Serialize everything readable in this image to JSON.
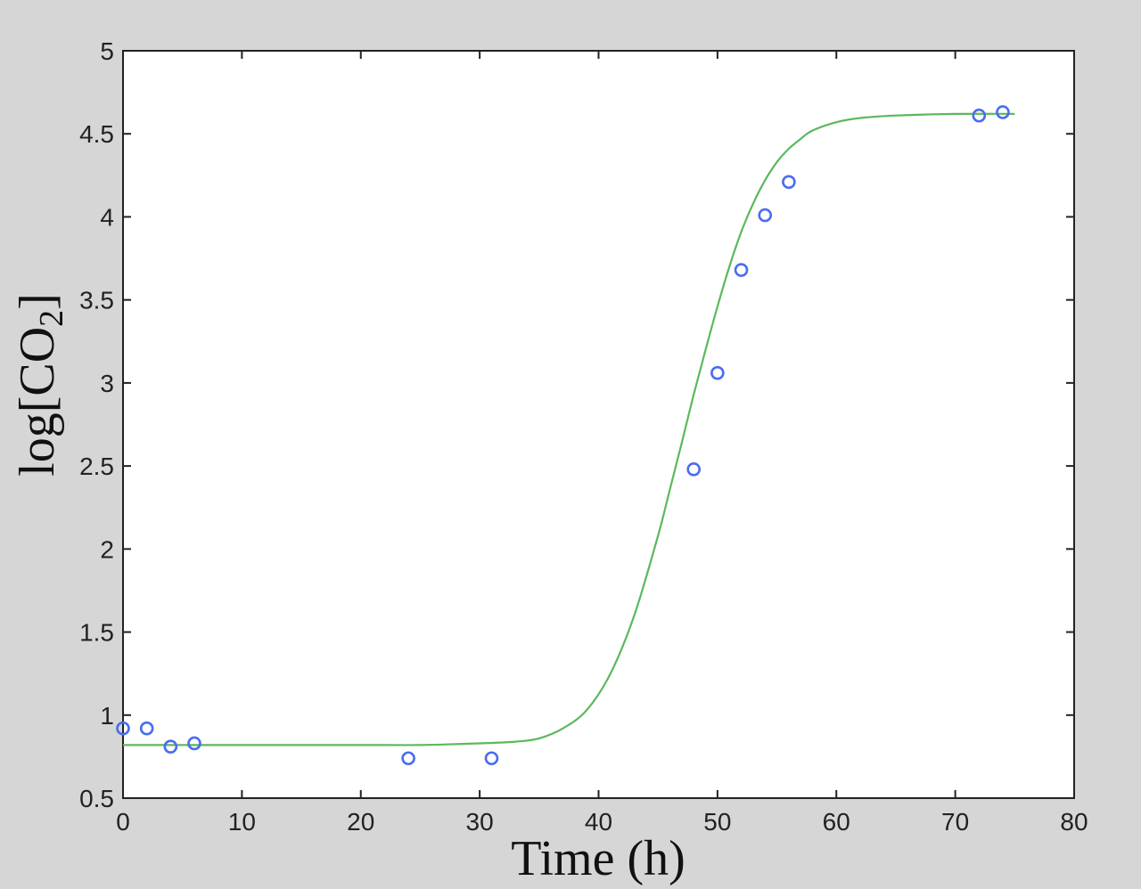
{
  "chart_data": {
    "type": "scatter",
    "xlabel": "Time (h)",
    "ylabel": {
      "main": "log[CO",
      "sub": "2",
      "close": "]"
    },
    "xlim": [
      0,
      80
    ],
    "ylim": [
      0.5,
      5
    ],
    "xticks": [
      0,
      10,
      20,
      30,
      40,
      50,
      60,
      70,
      80
    ],
    "xtick_labels": [
      "0",
      "10",
      "20",
      "30",
      "40",
      "50",
      "60",
      "70",
      "80"
    ],
    "yticks": [
      0.5,
      1,
      1.5,
      2,
      2.5,
      3,
      3.5,
      4,
      4.5,
      5
    ],
    "ytick_labels": [
      "0.5",
      "1",
      "1.5",
      "2",
      "2.5",
      "3",
      "3.5",
      "4",
      "4.5",
      "5"
    ],
    "grid": false,
    "series": [
      {
        "kind": "markers",
        "marker": "circle-open",
        "color": "#4a6cf0",
        "x": [
          0,
          2,
          4,
          6,
          24,
          31,
          48,
          50,
          52,
          54,
          56,
          72,
          74
        ],
        "y": [
          0.92,
          0.92,
          0.81,
          0.83,
          0.74,
          0.74,
          2.48,
          3.06,
          3.68,
          4.01,
          4.21,
          4.61,
          4.63
        ]
      },
      {
        "kind": "line",
        "color": "#5cb85c",
        "x": [
          0,
          5,
          10,
          15,
          20,
          25,
          30,
          33,
          35,
          37,
          39,
          41,
          43,
          45,
          46,
          47,
          48,
          49,
          50,
          51,
          52,
          53,
          54,
          55,
          56,
          57,
          58,
          60,
          62,
          65,
          70,
          75
        ],
        "y": [
          0.82,
          0.82,
          0.82,
          0.82,
          0.82,
          0.82,
          0.83,
          0.84,
          0.86,
          0.92,
          1.03,
          1.25,
          1.6,
          2.08,
          2.36,
          2.64,
          2.93,
          3.2,
          3.46,
          3.7,
          3.91,
          4.08,
          4.22,
          4.33,
          4.41,
          4.47,
          4.52,
          4.57,
          4.595,
          4.61,
          4.62,
          4.62
        ]
      }
    ]
  }
}
